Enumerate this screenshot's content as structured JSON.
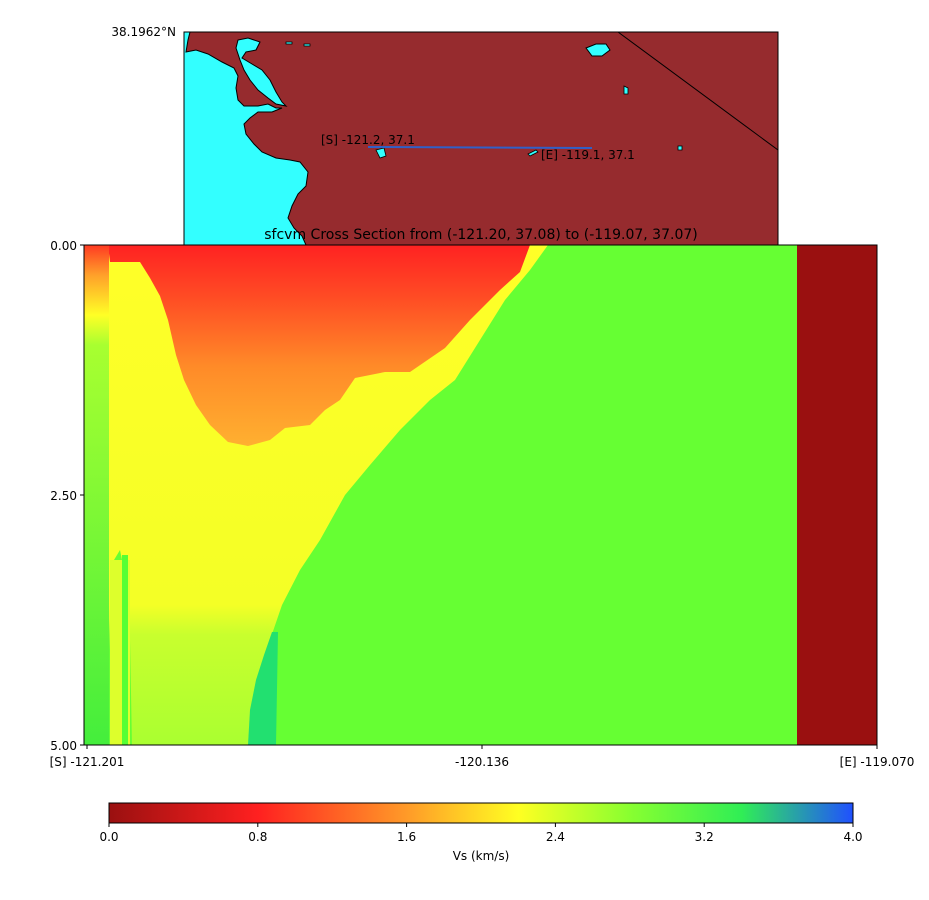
{
  "chart_data": [
    {
      "type": "map",
      "corner_label": "38.1962°N",
      "colors": {
        "land": "#962b2e",
        "water": "#33ffff",
        "line": "#3060c8"
      },
      "start_point": {
        "label": "[S] -121.2, 37.1",
        "lon": -121.2,
        "lat": 37.1
      },
      "end_point": {
        "label": "[E] -119.1, 37.1",
        "lon": -119.1,
        "lat": 37.1
      }
    },
    {
      "type": "heatmap",
      "title": "sfcvm Cross Section from (-121.20, 37.08) to (-119.07, 37.07)",
      "x_ticks": [
        "[S] -121.201",
        "-120.136",
        "[E] -119.070"
      ],
      "y_ticks": [
        "0.00",
        "2.50",
        "5.00"
      ],
      "xlim": [
        -121.201,
        -119.07
      ],
      "ylim": [
        5.0,
        0.0
      ],
      "colorbar": {
        "label": "Vs (km/s)",
        "ticks": [
          "0.0",
          "0.8",
          "1.6",
          "2.4",
          "3.2",
          "4.0"
        ],
        "range": [
          0.0,
          4.0
        ]
      },
      "regions": [
        {
          "name": "shallow-sediment-left",
          "vs": 2.1
        },
        {
          "name": "basin-low-velocity",
          "vs": 0.5
        },
        {
          "name": "basin-edge",
          "vs": 1.4
        },
        {
          "name": "yellow-sediment",
          "vs": 2.3
        },
        {
          "name": "basement",
          "vs": 2.9
        },
        {
          "name": "deep-basement-pocket",
          "vs": 3.3
        },
        {
          "name": "no-data-east",
          "vs": 0.0
        }
      ]
    }
  ]
}
